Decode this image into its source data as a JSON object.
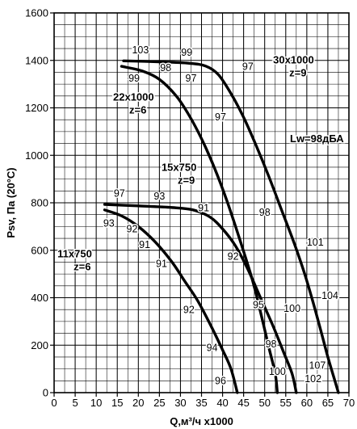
{
  "chart_data": {
    "type": "line",
    "title": "",
    "xlabel": "Q,м³/ч x1000",
    "ylabel": "Psv, Па (20°C)",
    "xlim": [
      0,
      70
    ],
    "ylim": [
      0,
      1600
    ],
    "x_ticks": [
      0,
      5,
      10,
      15,
      20,
      25,
      30,
      35,
      40,
      45,
      50,
      55,
      60,
      65,
      70
    ],
    "y_ticks": [
      0,
      200,
      400,
      600,
      800,
      1000,
      1200,
      1400,
      1600
    ],
    "grid": true,
    "minor_grid": {
      "x_step": 2.5,
      "y_step": 50
    },
    "series": [
      {
        "name": "",
        "points": [
          [
            16.5,
            1398
          ],
          [
            25,
            1394
          ],
          [
            32,
            1388
          ],
          [
            36,
            1376
          ],
          [
            39,
            1340
          ],
          [
            42,
            1260
          ],
          [
            45,
            1160
          ],
          [
            48,
            1040
          ],
          [
            51,
            910
          ],
          [
            54,
            770
          ],
          [
            57,
            630
          ],
          [
            59.5,
            500
          ],
          [
            61.5,
            380
          ],
          [
            63.5,
            250
          ],
          [
            65,
            150
          ],
          [
            66.5,
            60
          ],
          [
            67.5,
            0
          ]
        ]
      },
      {
        "name": "",
        "points": [
          [
            16,
            1375
          ],
          [
            21,
            1355
          ],
          [
            25,
            1320
          ],
          [
            29,
            1250
          ],
          [
            32,
            1170
          ],
          [
            35,
            1070
          ],
          [
            38,
            950
          ],
          [
            41,
            810
          ],
          [
            44,
            650
          ],
          [
            47,
            480
          ],
          [
            49,
            340
          ],
          [
            51,
            190
          ],
          [
            52.5,
            80
          ],
          [
            53,
            0
          ]
        ]
      },
      {
        "name": "",
        "points": [
          [
            12,
            793
          ],
          [
            20,
            787
          ],
          [
            28,
            780
          ],
          [
            33,
            770
          ],
          [
            37,
            740
          ],
          [
            40,
            690
          ],
          [
            43,
            620
          ],
          [
            46,
            520
          ],
          [
            49,
            400
          ],
          [
            52,
            280
          ],
          [
            54.5,
            170
          ],
          [
            56.5,
            80
          ],
          [
            57.5,
            0
          ]
        ]
      },
      {
        "name": "",
        "points": [
          [
            12,
            770
          ],
          [
            16,
            745
          ],
          [
            20,
            700
          ],
          [
            24,
            635
          ],
          [
            28,
            550
          ],
          [
            31,
            470
          ],
          [
            34,
            390
          ],
          [
            37,
            290
          ],
          [
            40,
            180
          ],
          [
            42,
            100
          ],
          [
            43.5,
            0
          ]
        ]
      }
    ],
    "annotations": [
      {
        "text": "103",
        "x": 20.5,
        "y": 1430
      },
      {
        "text": "99",
        "x": 31.5,
        "y": 1420
      },
      {
        "text": "98",
        "x": 26.5,
        "y": 1355
      },
      {
        "text": "99",
        "x": 19,
        "y": 1310
      },
      {
        "text": "97",
        "x": 32.5,
        "y": 1310
      },
      {
        "text": "97",
        "x": 46,
        "y": 1360
      },
      {
        "text": "97",
        "x": 39.5,
        "y": 1148
      },
      {
        "text": "98",
        "x": 50,
        "y": 745
      },
      {
        "text": "101",
        "x": 62,
        "y": 620
      },
      {
        "text": "104",
        "x": 65.5,
        "y": 395
      },
      {
        "text": "100",
        "x": 56.5,
        "y": 340
      },
      {
        "text": "107",
        "x": 62.5,
        "y": 100
      },
      {
        "text": "102",
        "x": 61.5,
        "y": 45
      },
      {
        "text": "97",
        "x": 15.5,
        "y": 825
      },
      {
        "text": "93",
        "x": 25,
        "y": 813
      },
      {
        "text": "91",
        "x": 35.5,
        "y": 765
      },
      {
        "text": "92",
        "x": 42.5,
        "y": 560
      },
      {
        "text": "95",
        "x": 48.5,
        "y": 355
      },
      {
        "text": "98",
        "x": 51.5,
        "y": 190
      },
      {
        "text": "100",
        "x": 53,
        "y": 75
      },
      {
        "text": "93",
        "x": 13,
        "y": 700
      },
      {
        "text": "92",
        "x": 18.5,
        "y": 675
      },
      {
        "text": "91",
        "x": 21.5,
        "y": 610
      },
      {
        "text": "91",
        "x": 25.5,
        "y": 530
      },
      {
        "text": "92",
        "x": 32,
        "y": 335
      },
      {
        "text": "94",
        "x": 37.5,
        "y": 175
      },
      {
        "text": "96",
        "x": 39.5,
        "y": 35
      }
    ],
    "model_labels": [
      {
        "lines": [
          "30x1000",
          "z=9"
        ],
        "x": 52,
        "y": 1388
      },
      {
        "lines": [
          "22x1000",
          "z=6"
        ],
        "x": 14,
        "y": 1230
      },
      {
        "lines": [
          "15x750",
          "z=9"
        ],
        "x": 25.5,
        "y": 935
      },
      {
        "lines": [
          "11x750",
          "z=6"
        ],
        "x": 0.8,
        "y": 570
      }
    ],
    "note": "Lw=98дБА",
    "note_position": {
      "x": 56,
      "y": 1055
    }
  }
}
